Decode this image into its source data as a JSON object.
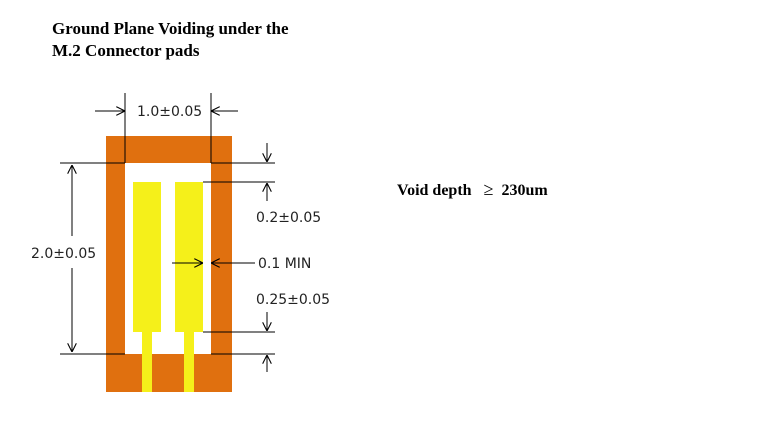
{
  "title": {
    "line1": "Ground Plane Voiding under the",
    "line2": "M.2 Connector pads"
  },
  "note": {
    "label": "Void depth",
    "symbol": "≥",
    "value": "230um"
  },
  "dimensions": {
    "void_width": "1.0±0.05",
    "void_height": "2.0±0.05",
    "top_gap": "0.2±0.05",
    "pad_clearance": "0.1 MIN",
    "bottom_gap": "0.25±0.05"
  },
  "colors": {
    "ground_plane": "#E0700F",
    "pad": "#F5F01A",
    "void": "#FFFFFF",
    "dimension_line": "#000000"
  }
}
